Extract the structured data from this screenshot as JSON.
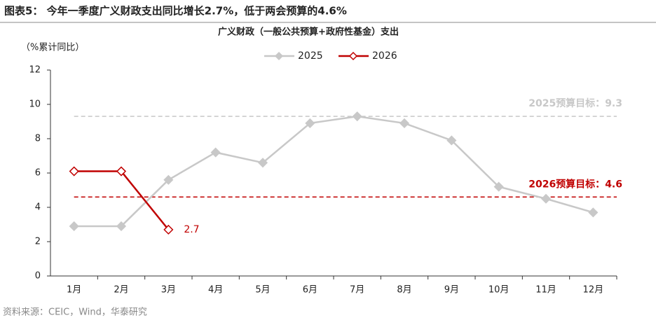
{
  "chart_data": {
    "type": "line",
    "title": "图表5： 今年一季度广义财政支出同比增长2.7%，低于两会预算的4.6%",
    "subtitle": "广义财政（一般公共预算+政府性基金）支出",
    "y_label": "（%累计同比）",
    "source": "资料来源：CEIC，Wind，华泰研究",
    "categories": [
      "1月",
      "2月",
      "3月",
      "4月",
      "5月",
      "6月",
      "7月",
      "8月",
      "9月",
      "10月",
      "11月",
      "12月"
    ],
    "series": [
      {
        "name": "2025",
        "color": "#c8c8c8",
        "values": [
          2.9,
          2.9,
          5.6,
          7.2,
          6.6,
          8.9,
          9.3,
          8.9,
          7.9,
          5.2,
          4.5,
          3.7
        ]
      },
      {
        "name": "2026",
        "color": "#c00000",
        "values": [
          6.1,
          6.1,
          2.7,
          null,
          null,
          null,
          null,
          null,
          null,
          null,
          null,
          null
        ]
      }
    ],
    "reference_lines": [
      {
        "label": "2025预算目标：",
        "value": 9.3,
        "color": "#c8c8c8"
      },
      {
        "label": "2026预算目标：",
        "value": 4.6,
        "color": "#c00000"
      }
    ],
    "ylim": [
      0,
      12
    ],
    "yticks": [
      0,
      2,
      4,
      6,
      8,
      10,
      12
    ],
    "grid": false
  }
}
